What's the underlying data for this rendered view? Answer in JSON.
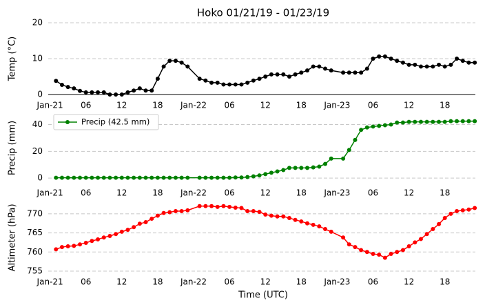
{
  "chart_data": [
    {
      "type": "line",
      "title": "Hoko 01/21/19 - 01/23/19",
      "ylabel": "Temp ($^\\circ$C)",
      "x": [
        1,
        2,
        3,
        4,
        5,
        6,
        7,
        8,
        9,
        10,
        11,
        12,
        13,
        14,
        15,
        16,
        17,
        18,
        19,
        20,
        21,
        22,
        23,
        25,
        26,
        27,
        28,
        29,
        30,
        31,
        32,
        33,
        34,
        35,
        36,
        37,
        38,
        39,
        40,
        41,
        42,
        43,
        44,
        45,
        46,
        47,
        49,
        50,
        51,
        52,
        53,
        54,
        55,
        56,
        57,
        58,
        59,
        60,
        61,
        62,
        63,
        64,
        65,
        66,
        67,
        68,
        69,
        70,
        71
      ],
      "series": [
        {
          "color": "#000000",
          "values": [
            3.8,
            2.7,
            2.1,
            1.7,
            1.0,
            0.6,
            0.6,
            0.6,
            0.6,
            0,
            0,
            0,
            0.6,
            1.1,
            1.7,
            1.1,
            1.1,
            4.4,
            7.8,
            9.4,
            9.4,
            8.9,
            7.8,
            4.4,
            3.9,
            3.3,
            3.3,
            2.8,
            2.8,
            2.8,
            2.8,
            3.3,
            3.9,
            4.4,
            5.0,
            5.6,
            5.6,
            5.6,
            5.0,
            5.6,
            6.1,
            6.7,
            7.8,
            7.8,
            7.2,
            6.7,
            6.1,
            6.1,
            6.1,
            6.1,
            7.2,
            10.0,
            10.6,
            10.6,
            10.0,
            9.4,
            8.9,
            8.3,
            8.3,
            7.8,
            7.8,
            7.8,
            8.3,
            7.8,
            8.3,
            10.0,
            9.4,
            8.9,
            8.9
          ]
        }
      ],
      "xlim": [
        -0.3,
        71.1
      ],
      "xticks": [
        {
          "value": 0,
          "label": "Jan-21"
        },
        {
          "value": 6,
          "label": "06"
        },
        {
          "value": 12,
          "label": "12"
        },
        {
          "value": 18,
          "label": "18"
        },
        {
          "value": 24,
          "label": "Jan-22"
        },
        {
          "value": 30,
          "label": "06"
        },
        {
          "value": 36,
          "label": "12"
        },
        {
          "value": 42,
          "label": "18"
        },
        {
          "value": 48,
          "label": "Jan-23"
        },
        {
          "value": 54,
          "label": "06"
        },
        {
          "value": 60,
          "label": "12"
        },
        {
          "value": 66,
          "label": "18"
        }
      ],
      "ylim": [
        0,
        20
      ],
      "yticks": [
        0,
        10,
        20
      ],
      "grid": true
    },
    {
      "type": "line",
      "ylabel": "Precip (mm)",
      "x": [
        1,
        2,
        3,
        4,
        5,
        6,
        7,
        8,
        9,
        10,
        11,
        12,
        13,
        14,
        15,
        16,
        17,
        18,
        19,
        20,
        21,
        22,
        23,
        25,
        26,
        27,
        28,
        29,
        30,
        31,
        32,
        33,
        34,
        35,
        36,
        37,
        38,
        39,
        40,
        41,
        42,
        43,
        44,
        45,
        46,
        47,
        49,
        50,
        51,
        52,
        53,
        54,
        55,
        56,
        57,
        58,
        59,
        60,
        61,
        62,
        63,
        64,
        65,
        66,
        67,
        68,
        69,
        70,
        71
      ],
      "series": [
        {
          "name": "Precip (42.5 mm)",
          "color": "#008000",
          "values": [
            0.3,
            0.3,
            0.3,
            0.3,
            0.3,
            0.3,
            0.3,
            0.3,
            0.3,
            0.3,
            0.3,
            0.3,
            0.3,
            0.3,
            0.3,
            0.3,
            0.3,
            0.3,
            0.3,
            0.3,
            0.3,
            0.3,
            0.3,
            0.3,
            0.3,
            0.3,
            0.3,
            0.3,
            0.3,
            0.5,
            0.5,
            0.8,
            1.3,
            2.0,
            3.0,
            4.0,
            5.0,
            6.0,
            7.6,
            7.6,
            7.6,
            7.6,
            8.0,
            8.6,
            10.6,
            14.6,
            14.6,
            21,
            28.5,
            36,
            37.8,
            38.5,
            39,
            39.5,
            40,
            41.5,
            41.5,
            42,
            42,
            42,
            42,
            42,
            42,
            42,
            42.5,
            42.5,
            42.5,
            42.5,
            42.5
          ]
        }
      ],
      "xlim": [
        -0.3,
        71.1
      ],
      "xticks": [
        {
          "value": 0,
          "label": "Jan-21"
        },
        {
          "value": 6,
          "label": "06"
        },
        {
          "value": 12,
          "label": "12"
        },
        {
          "value": 18,
          "label": "18"
        },
        {
          "value": 24,
          "label": "Jan-22"
        },
        {
          "value": 30,
          "label": "06"
        },
        {
          "value": 36,
          "label": "12"
        },
        {
          "value": 42,
          "label": "18"
        },
        {
          "value": 48,
          "label": "Jan-23"
        },
        {
          "value": 54,
          "label": "06"
        },
        {
          "value": 60,
          "label": "12"
        },
        {
          "value": 66,
          "label": "18"
        }
      ],
      "ylim": [
        -3,
        48
      ],
      "yticks": [
        0,
        20,
        40
      ],
      "grid": true,
      "legend": "upper left"
    },
    {
      "type": "line",
      "ylabel": "Altimeter (hPa)",
      "xlabel": "Time (UTC)",
      "x": [
        1,
        2,
        3,
        4,
        5,
        6,
        7,
        8,
        9,
        10,
        11,
        12,
        13,
        14,
        15,
        16,
        17,
        18,
        19,
        20,
        21,
        22,
        23,
        25,
        26,
        27,
        28,
        29,
        30,
        31,
        32,
        33,
        34,
        35,
        36,
        37,
        38,
        39,
        40,
        41,
        42,
        43,
        44,
        45,
        46,
        47,
        49,
        50,
        51,
        52,
        53,
        54,
        55,
        56,
        57,
        58,
        59,
        60,
        61,
        62,
        63,
        64,
        65,
        66,
        67,
        68,
        69,
        70,
        71
      ],
      "series": [
        {
          "color": "#ff0000",
          "values": [
            760.7,
            761.3,
            761.5,
            761.6,
            762.0,
            762.4,
            762.9,
            763.3,
            763.8,
            764.2,
            764.7,
            765.3,
            765.8,
            766.5,
            767.4,
            767.8,
            768.7,
            769.5,
            770.2,
            770.4,
            770.7,
            770.7,
            770.9,
            772.0,
            772.0,
            772.0,
            771.8,
            772.0,
            771.8,
            771.6,
            771.5,
            770.7,
            770.7,
            770.5,
            769.8,
            769.5,
            769.3,
            769.3,
            768.9,
            768.4,
            768.0,
            767.5,
            767.1,
            766.7,
            766.0,
            765.3,
            763.8,
            762.0,
            761.3,
            760.5,
            760.0,
            759.5,
            759.3,
            758.5,
            759.5,
            760.0,
            760.5,
            761.5,
            762.5,
            763.4,
            764.7,
            766.0,
            767.3,
            768.9,
            770.0,
            770.7,
            770.9,
            771.1,
            771.5
          ]
        }
      ],
      "xlim": [
        -0.3,
        71.1
      ],
      "xticks": [
        {
          "value": 0,
          "label": "Jan-21"
        },
        {
          "value": 6,
          "label": "06"
        },
        {
          "value": 12,
          "label": "12"
        },
        {
          "value": 18,
          "label": "18"
        },
        {
          "value": 24,
          "label": "Jan-22"
        },
        {
          "value": 30,
          "label": "06"
        },
        {
          "value": 36,
          "label": "12"
        },
        {
          "value": 42,
          "label": "18"
        },
        {
          "value": 48,
          "label": "Jan-23"
        },
        {
          "value": 54,
          "label": "06"
        },
        {
          "value": 60,
          "label": "12"
        },
        {
          "value": 66,
          "label": "18"
        }
      ],
      "ylim": [
        755,
        772.5
      ],
      "yticks": [
        755,
        760,
        765,
        770
      ],
      "grid": true
    }
  ]
}
